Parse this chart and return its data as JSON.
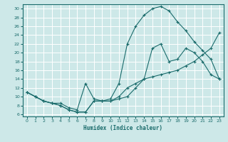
{
  "xlabel": "Humidex (Indice chaleur)",
  "bg_color": "#cde8e8",
  "line_color": "#1a6b6b",
  "grid_color": "#ffffff",
  "xlim": [
    -0.5,
    23.5
  ],
  "ylim": [
    5.5,
    31
  ],
  "xticks": [
    0,
    1,
    2,
    3,
    4,
    5,
    6,
    7,
    8,
    9,
    10,
    11,
    12,
    13,
    14,
    15,
    16,
    17,
    18,
    19,
    20,
    21,
    22,
    23
  ],
  "yticks": [
    6,
    8,
    10,
    12,
    14,
    16,
    18,
    20,
    22,
    24,
    26,
    28,
    30
  ],
  "line1_x": [
    0,
    1,
    2,
    3,
    4,
    5,
    6,
    7,
    8,
    9,
    10,
    11,
    12,
    13,
    14,
    15,
    16,
    17,
    18,
    19,
    20,
    21,
    22,
    23
  ],
  "line1_y": [
    11,
    10,
    9,
    8.5,
    8,
    7,
    6.5,
    6.5,
    9,
    9,
    9,
    10,
    12,
    13,
    14,
    14.5,
    15,
    15.5,
    16,
    17,
    18,
    19.5,
    21,
    24.5
  ],
  "line2_x": [
    0,
    1,
    2,
    3,
    4,
    5,
    6,
    7,
    8,
    9,
    10,
    11,
    12,
    13,
    14,
    15,
    16,
    17,
    18,
    19,
    20,
    21,
    22,
    23
  ],
  "line2_y": [
    11,
    10,
    9,
    8.5,
    8.5,
    7.5,
    7,
    13,
    9.5,
    9,
    9,
    9.5,
    10,
    12,
    14,
    21,
    22,
    18,
    18.5,
    21,
    20,
    18,
    15,
    14
  ],
  "line3_x": [
    0,
    1,
    2,
    3,
    4,
    5,
    6,
    7,
    8,
    9,
    10,
    11,
    12,
    13,
    14,
    15,
    16,
    17,
    18,
    19,
    20,
    21,
    22,
    23
  ],
  "line3_y": [
    11,
    10,
    9,
    8.5,
    8,
    7,
    6.5,
    6.5,
    9,
    9,
    9.5,
    13,
    22,
    26,
    28.5,
    30,
    30.5,
    29.5,
    27,
    25,
    22.5,
    20.5,
    18.5,
    14
  ]
}
